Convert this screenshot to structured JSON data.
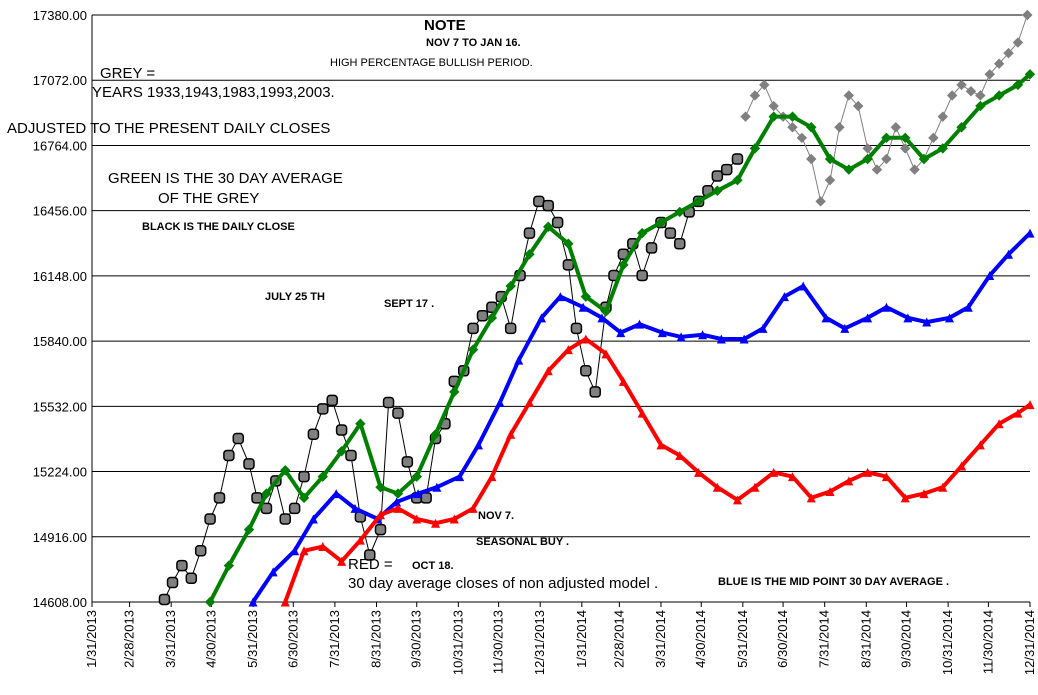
{
  "chart_data": {
    "type": "line",
    "ylim": [
      14608,
      17380
    ],
    "y_ticks": [
      "17380.00",
      "17072.00",
      "16764.00",
      "16456.00",
      "16148.00",
      "15840.00",
      "15532.00",
      "15224.00",
      "14916.00",
      "14608.00"
    ],
    "x_tick_labels": [
      "1/31/2013",
      "2/28/2013",
      "3/31/2013",
      "4/30/2013",
      "5/31/2013",
      "6/30/2013",
      "7/31/2013",
      "8/31/2013",
      "9/30/2013",
      "10/31/2013",
      "11/30/2013",
      "12/31/2013",
      "1/31/2014",
      "2/28/2014",
      "3/31/2014",
      "4/30/2014",
      "5/31/2014",
      "6/30/2014",
      "7/31/2014",
      "8/31/2014",
      "9/30/2014",
      "10/31/2014",
      "11/30/2014",
      "12/31/2014"
    ],
    "grid": true,
    "annotations": {
      "note_title": "NOTE",
      "note_line1": "NOV 7 TO JAN 16.",
      "note_line2": "HIGH PERCENTAGE BULLISH PERIOD.",
      "grey_line1": "GREY =",
      "grey_line2": "YEARS 1933,1943,1983,1993,2003.",
      "adjusted": "ADJUSTED TO THE PRESENT DAILY CLOSES",
      "green_line1": "GREEN IS THE 30 DAY AVERAGE",
      "green_line2": "OF THE GREY",
      "black": "BLACK IS THE DAILY CLOSE",
      "july": "JULY 25 TH",
      "sept": "SEPT 17 .",
      "nov7": "NOV 7.",
      "seasonal": "SEASONAL BUY .",
      "red_label": "RED =",
      "oct18": "OCT 18.",
      "red_desc": "30 day average closes of non adjusted model .",
      "blue": "BLUE IS THE MID POINT 30 DAY AVERAGE ."
    },
    "series": [
      {
        "color": "#000000",
        "marker_fill": "#808080",
        "marker": "circle",
        "x": [
          "2013-03-26",
          "2013-04-01",
          "2013-04-08",
          "2013-04-15",
          "2013-04-22",
          "2013-04-29",
          "2013-05-06",
          "2013-05-13",
          "2013-05-20",
          "2013-05-28",
          "2013-06-03",
          "2013-06-10",
          "2013-06-17",
          "2013-06-24",
          "2013-07-01",
          "2013-07-08",
          "2013-07-15",
          "2013-07-22",
          "2013-07-29",
          "2013-08-05",
          "2013-08-12",
          "2013-08-19",
          "2013-08-26",
          "2013-09-03",
          "2013-09-09",
          "2013-09-16",
          "2013-09-23",
          "2013-09-30",
          "2013-10-07",
          "2013-10-14",
          "2013-10-21",
          "2013-10-28",
          "2013-11-04",
          "2013-11-11",
          "2013-11-18",
          "2013-11-25",
          "2013-12-02",
          "2013-12-09",
          "2013-12-16",
          "2013-12-23",
          "2013-12-30",
          "2014-01-06",
          "2014-01-13",
          "2014-01-21",
          "2014-01-27",
          "2014-02-03",
          "2014-02-10",
          "2014-02-18",
          "2014-02-24",
          "2014-03-03",
          "2014-03-10",
          "2014-03-17",
          "2014-03-24",
          "2014-03-31",
          "2014-04-07",
          "2014-04-14",
          "2014-04-21",
          "2014-04-28",
          "2014-05-05",
          "2014-05-12",
          "2014-05-19",
          "2014-05-27"
        ],
        "y": [
          14620,
          14700,
          14780,
          14720,
          14850,
          15000,
          15100,
          15300,
          15380,
          15260,
          15100,
          15050,
          15180,
          15000,
          15050,
          15200,
          15400,
          15520,
          15560,
          15420,
          15300,
          15010,
          14830,
          14950,
          15550,
          15500,
          15270,
          15100,
          15100,
          15380,
          15450,
          15650,
          15700,
          15900,
          15960,
          16000,
          16050,
          15900,
          16150,
          16350,
          16500,
          16480,
          16400,
          16200,
          15900,
          15700,
          15600,
          16000,
          16150,
          16250,
          16300,
          16150,
          16280,
          16400,
          16350,
          16300,
          16450,
          16500,
          16550,
          16620,
          16650,
          16700
        ]
      },
      {
        "color": "#808080",
        "marker_fill": "#808080",
        "marker": "diamond",
        "x": [
          "2014-06-02",
          "2014-06-09",
          "2014-06-16",
          "2014-06-23",
          "2014-06-30",
          "2014-07-07",
          "2014-07-14",
          "2014-07-21",
          "2014-07-28",
          "2014-08-04",
          "2014-08-11",
          "2014-08-18",
          "2014-08-25",
          "2014-09-01",
          "2014-09-08",
          "2014-09-15",
          "2014-09-22",
          "2014-09-29",
          "2014-10-06",
          "2014-10-13",
          "2014-10-20",
          "2014-10-27",
          "2014-11-03",
          "2014-11-10",
          "2014-11-17",
          "2014-11-24",
          "2014-12-01",
          "2014-12-08",
          "2014-12-15",
          "2014-12-22",
          "2014-12-29"
        ],
        "y": [
          16900,
          17000,
          17050,
          16950,
          16900,
          16850,
          16800,
          16700,
          16500,
          16600,
          16850,
          17000,
          16950,
          16750,
          16650,
          16700,
          16850,
          16750,
          16650,
          16700,
          16800,
          16900,
          17000,
          17050,
          17020,
          17000,
          17100,
          17150,
          17200,
          17250,
          17380
        ]
      },
      {
        "color": "#008000",
        "marker": "diamond",
        "x": [
          "2013-04-29",
          "2013-05-13",
          "2013-05-28",
          "2013-06-10",
          "2013-06-24",
          "2013-07-08",
          "2013-07-22",
          "2013-08-05",
          "2013-08-19",
          "2013-09-03",
          "2013-09-16",
          "2013-09-30",
          "2013-10-14",
          "2013-10-28",
          "2013-11-11",
          "2013-11-25",
          "2013-12-09",
          "2013-12-23",
          "2014-01-06",
          "2014-01-21",
          "2014-02-03",
          "2014-02-18",
          "2014-03-03",
          "2014-03-17",
          "2014-03-31",
          "2014-04-14",
          "2014-04-28",
          "2014-05-12",
          "2014-05-27",
          "2014-06-09",
          "2014-06-23",
          "2014-07-07",
          "2014-07-21",
          "2014-08-04",
          "2014-08-18",
          "2014-09-01",
          "2014-09-15",
          "2014-09-29",
          "2014-10-13",
          "2014-10-27",
          "2014-11-10",
          "2014-11-24",
          "2014-12-08",
          "2014-12-22",
          "2014-12-31"
        ],
        "y": [
          14608,
          14780,
          14950,
          15120,
          15230,
          15100,
          15200,
          15320,
          15450,
          15150,
          15120,
          15200,
          15400,
          15600,
          15800,
          15950,
          16100,
          16250,
          16380,
          16300,
          16050,
          15980,
          16200,
          16350,
          16400,
          16450,
          16500,
          16550,
          16600,
          16750,
          16900,
          16900,
          16850,
          16700,
          16650,
          16700,
          16800,
          16800,
          16700,
          16750,
          16850,
          16950,
          17000,
          17050,
          17100
        ]
      },
      {
        "color": "#0000ff",
        "marker": "triangle",
        "x": [
          "2013-05-31",
          "2013-06-15",
          "2013-07-01",
          "2013-07-15",
          "2013-08-01",
          "2013-08-15",
          "2013-09-01",
          "2013-09-15",
          "2013-10-01",
          "2013-10-15",
          "2013-11-01",
          "2013-11-15",
          "2013-12-01",
          "2013-12-15",
          "2014-01-01",
          "2014-01-15",
          "2014-02-01",
          "2014-02-15",
          "2014-03-01",
          "2014-03-15",
          "2014-04-01",
          "2014-04-15",
          "2014-05-01",
          "2014-05-15",
          "2014-06-01",
          "2014-06-15",
          "2014-07-01",
          "2014-07-15",
          "2014-08-01",
          "2014-08-15",
          "2014-09-01",
          "2014-09-15",
          "2014-10-01",
          "2014-10-15",
          "2014-11-01",
          "2014-11-15",
          "2014-12-01",
          "2014-12-15",
          "2014-12-31"
        ],
        "y": [
          14608,
          14750,
          14850,
          15000,
          15120,
          15050,
          15000,
          15080,
          15120,
          15150,
          15200,
          15350,
          15550,
          15750,
          15950,
          16050,
          16000,
          15950,
          15880,
          15920,
          15880,
          15860,
          15870,
          15850,
          15850,
          15900,
          16050,
          16100,
          15950,
          15900,
          15950,
          16000,
          15950,
          15930,
          15950,
          16000,
          16150,
          16250,
          16350
        ]
      },
      {
        "color": "#ff0000",
        "marker": "triangle",
        "x": [
          "2013-06-24",
          "2013-07-08",
          "2013-07-22",
          "2013-08-05",
          "2013-08-19",
          "2013-09-03",
          "2013-09-16",
          "2013-09-30",
          "2013-10-14",
          "2013-10-28",
          "2013-11-11",
          "2013-11-25",
          "2013-12-09",
          "2013-12-23",
          "2014-01-06",
          "2014-01-21",
          "2014-02-03",
          "2014-02-18",
          "2014-03-03",
          "2014-03-17",
          "2014-03-31",
          "2014-04-14",
          "2014-04-28",
          "2014-05-12",
          "2014-05-27",
          "2014-06-09",
          "2014-06-23",
          "2014-07-07",
          "2014-07-21",
          "2014-08-04",
          "2014-08-18",
          "2014-09-01",
          "2014-09-15",
          "2014-09-29",
          "2014-10-13",
          "2014-10-27",
          "2014-11-10",
          "2014-11-24",
          "2014-12-08",
          "2014-12-22",
          "2014-12-31"
        ],
        "y": [
          14608,
          14850,
          14870,
          14800,
          14900,
          15020,
          15050,
          15000,
          14980,
          15000,
          15050,
          15200,
          15400,
          15550,
          15700,
          15800,
          15850,
          15780,
          15650,
          15500,
          15350,
          15300,
          15220,
          15150,
          15090,
          15150,
          15220,
          15200,
          15100,
          15130,
          15180,
          15220,
          15200,
          15100,
          15120,
          15150,
          15250,
          15350,
          15450,
          15500,
          15540
        ]
      }
    ]
  }
}
